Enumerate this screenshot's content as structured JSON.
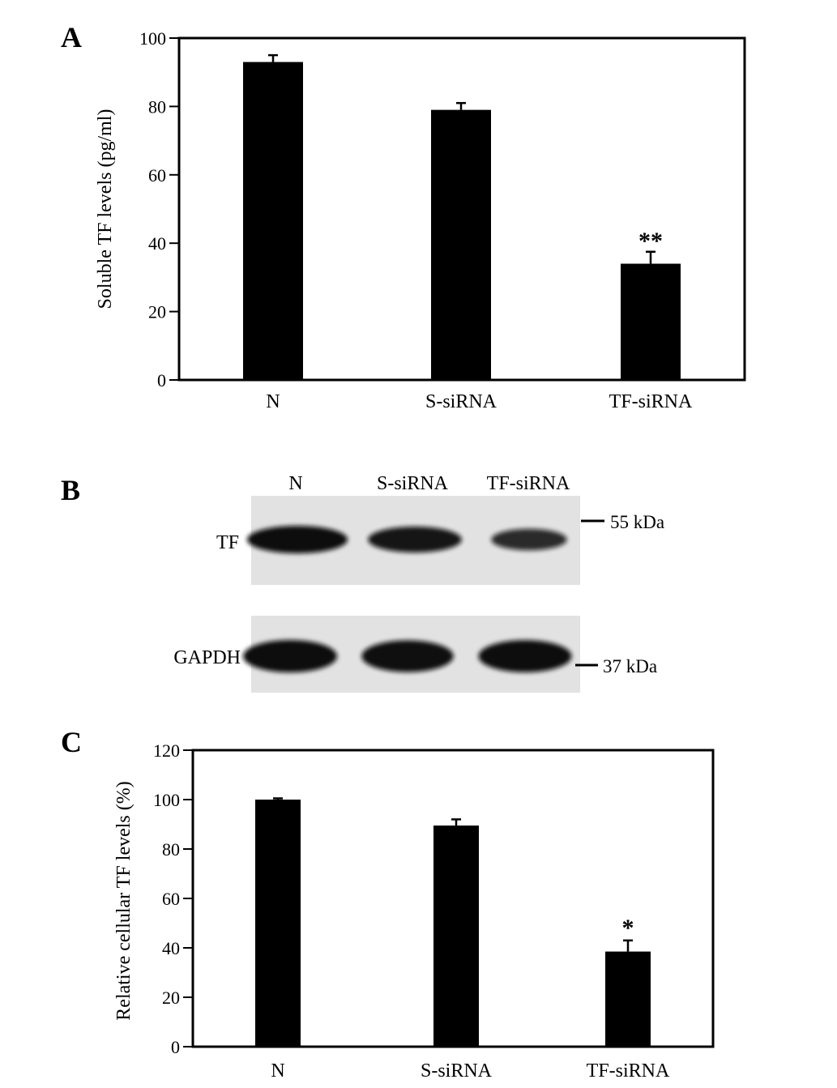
{
  "panels": {
    "a": {
      "letter": "A"
    },
    "b": {
      "letter": "B"
    },
    "c": {
      "letter": "C"
    }
  },
  "colors": {
    "bar": "#000000",
    "blot_bg": "#e2e2e2",
    "band": "#111111"
  },
  "chart_data": [
    {
      "type": "bar",
      "panel": "A",
      "categories": [
        "N",
        "S-siRNA",
        "TF-siRNA"
      ],
      "values": [
        93,
        79,
        34
      ],
      "errors": [
        2,
        2,
        3.5
      ],
      "significance": [
        "",
        "",
        "**"
      ],
      "ylabel": "Soluble TF levels (pg/ml)",
      "ylim": [
        0,
        100
      ],
      "yticks": [
        0,
        20,
        40,
        60,
        80,
        100
      ],
      "grid": false
    },
    {
      "type": "bar",
      "panel": "C",
      "categories": [
        "N",
        "S-siRNA",
        "TF-siRNA"
      ],
      "values": [
        100,
        89.5,
        38.5
      ],
      "errors": [
        0.5,
        2.5,
        4.5
      ],
      "significance": [
        "",
        "",
        "*"
      ],
      "ylabel": "Relative cellular TF levels (%)",
      "ylim": [
        0,
        120
      ],
      "yticks": [
        0,
        20,
        40,
        60,
        80,
        100,
        120
      ],
      "grid": false
    }
  ],
  "blot": {
    "lanes": [
      "N",
      "S-siRNA",
      "TF-siRNA"
    ],
    "rows": [
      {
        "label": "TF",
        "marker": "55 kDa",
        "intensity": [
          1.0,
          0.85,
          0.45
        ]
      },
      {
        "label": "GAPDH",
        "marker": "37 kDa",
        "intensity": [
          1.0,
          0.95,
          0.98
        ]
      }
    ]
  }
}
